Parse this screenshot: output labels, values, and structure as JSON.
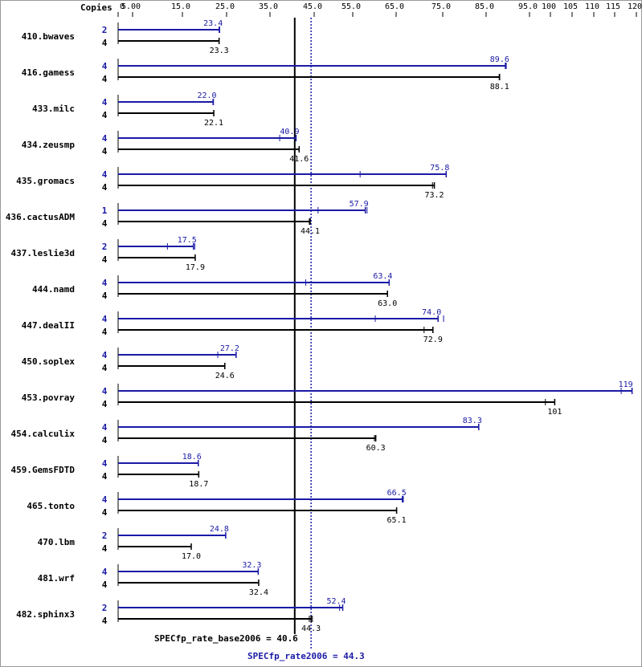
{
  "chart_data": {
    "type": "bar",
    "orientation": "horizontal",
    "axis_header": "Copies",
    "x_ticks": [
      {
        "label": "0",
        "value": 0
      },
      {
        "label": "5.00",
        "value": 5
      },
      {
        "label": "15.0",
        "value": 15
      },
      {
        "label": "25.0",
        "value": 25
      },
      {
        "label": "35.0",
        "value": 35
      },
      {
        "label": "45.0",
        "value": 45
      },
      {
        "label": "55.0",
        "value": 55
      },
      {
        "label": "65.0",
        "value": 65
      },
      {
        "label": "75.0",
        "value": 75
      },
      {
        "label": "85.0",
        "value": 85
      },
      {
        "label": "95.0",
        "value": 95
      },
      {
        "label": "100",
        "value": 100
      },
      {
        "label": "105",
        "value": 105
      },
      {
        "label": "110",
        "value": 110
      },
      {
        "label": "115",
        "value": 115
      },
      {
        "label": "120",
        "value": 120
      }
    ],
    "x_range": [
      0,
      120
    ],
    "benchmarks": [
      {
        "name": "410.bwaves",
        "peak": {
          "copies": "2",
          "value": 23.4,
          "label": "23.4",
          "runs": [
            23.3,
            23.4
          ]
        },
        "base": {
          "copies": "4",
          "value": 23.3,
          "label": "23.3",
          "runs": [
            23.3,
            23.3
          ]
        }
      },
      {
        "name": "416.gamess",
        "peak": {
          "copies": "4",
          "value": 89.6,
          "label": "89.6",
          "runs": [
            89.4,
            89.6
          ]
        },
        "base": {
          "copies": "4",
          "value": 88.1,
          "label": "88.1",
          "runs": [
            88.0,
            88.1
          ]
        }
      },
      {
        "name": "433.milc",
        "peak": {
          "copies": "4",
          "value": 22.0,
          "label": "22.0",
          "runs": [
            21.9,
            22.0
          ]
        },
        "base": {
          "copies": "4",
          "value": 22.1,
          "label": "22.1",
          "runs": [
            22.1,
            22.1
          ]
        }
      },
      {
        "name": "434.zeusmp",
        "peak": {
          "copies": "4",
          "value": 40.9,
          "label": "40.9",
          "runs": [
            37.2,
            40.9
          ]
        },
        "base": {
          "copies": "4",
          "value": 41.6,
          "label": "41.6",
          "runs": [
            41.6,
            41.6
          ]
        }
      },
      {
        "name": "435.gromacs",
        "peak": {
          "copies": "4",
          "value": 75.8,
          "label": "75.8",
          "runs": [
            56.7,
            75.8
          ]
        },
        "base": {
          "copies": "4",
          "value": 73.2,
          "label": "73.2",
          "runs": [
            72.8,
            73.2
          ]
        }
      },
      {
        "name": "436.cactusADM",
        "peak": {
          "copies": "1",
          "value": 57.9,
          "label": "57.9",
          "runs": [
            46.0,
            57.9,
            58.3
          ]
        },
        "base": {
          "copies": "4",
          "value": 44.1,
          "label": "44.1",
          "runs": [
            43.9,
            44.1
          ]
        }
      },
      {
        "name": "437.leslie3d",
        "peak": {
          "copies": "2",
          "value": 17.5,
          "label": "17.5",
          "runs": [
            12.0,
            17.5,
            17.8
          ]
        },
        "base": {
          "copies": "4",
          "value": 17.9,
          "label": "17.9",
          "runs": [
            17.9,
            17.9
          ]
        }
      },
      {
        "name": "444.namd",
        "peak": {
          "copies": "4",
          "value": 63.4,
          "label": "63.4",
          "runs": [
            43.1,
            63.4
          ]
        },
        "base": {
          "copies": "4",
          "value": 63.0,
          "label": "63.0",
          "runs": [
            63.0,
            63.0
          ]
        }
      },
      {
        "name": "447.dealII",
        "peak": {
          "copies": "4",
          "value": 74.0,
          "label": "74.0",
          "runs": [
            60.2,
            74.0,
            75.2
          ]
        },
        "base": {
          "copies": "4",
          "value": 72.9,
          "label": "72.9",
          "runs": [
            71.0,
            72.9
          ]
        }
      },
      {
        "name": "450.soplex",
        "peak": {
          "copies": "4",
          "value": 27.2,
          "label": "27.2",
          "runs": [
            23.0,
            27.2
          ]
        },
        "base": {
          "copies": "4",
          "value": 24.6,
          "label": "24.6",
          "runs": [
            24.6,
            24.6
          ]
        }
      },
      {
        "name": "453.povray",
        "peak": {
          "copies": "4",
          "value": 119,
          "label": "119",
          "runs": [
            116.5,
            119
          ]
        },
        "base": {
          "copies": "4",
          "value": 101,
          "label": "101",
          "runs": [
            98.8,
            101
          ]
        }
      },
      {
        "name": "454.calculix",
        "peak": {
          "copies": "4",
          "value": 83.3,
          "label": "83.3",
          "runs": [
            83.3,
            83.3
          ]
        },
        "base": {
          "copies": "4",
          "value": 60.3,
          "label": "60.3",
          "runs": [
            60.0,
            60.3
          ]
        }
      },
      {
        "name": "459.GemsFDTD",
        "peak": {
          "copies": "4",
          "value": 18.6,
          "label": "18.6",
          "runs": [
            18.6,
            18.6
          ]
        },
        "base": {
          "copies": "4",
          "value": 18.7,
          "label": "18.7",
          "runs": [
            18.7,
            18.7
          ]
        }
      },
      {
        "name": "465.tonto",
        "peak": {
          "copies": "4",
          "value": 66.5,
          "label": "66.5",
          "runs": [
            66.3,
            66.5
          ]
        },
        "base": {
          "copies": "4",
          "value": 65.1,
          "label": "65.1",
          "runs": [
            65.1,
            65.1
          ]
        }
      },
      {
        "name": "470.lbm",
        "peak": {
          "copies": "2",
          "value": 24.8,
          "label": "24.8",
          "runs": [
            24.8,
            24.8
          ]
        },
        "base": {
          "copies": "4",
          "value": 17.0,
          "label": "17.0",
          "runs": [
            17.0,
            17.0
          ]
        }
      },
      {
        "name": "481.wrf",
        "peak": {
          "copies": "4",
          "value": 32.3,
          "label": "32.3",
          "runs": [
            32.3,
            32.3
          ]
        },
        "base": {
          "copies": "4",
          "value": 32.4,
          "label": "32.4",
          "runs": [
            32.4,
            32.4
          ]
        }
      },
      {
        "name": "482.sphinx3",
        "peak": {
          "copies": "2",
          "value": 52.4,
          "label": "52.4",
          "runs": [
            51.6,
            52.4
          ]
        },
        "base": {
          "copies": "4",
          "value": 44.3,
          "label": "44.3",
          "runs": [
            43.9,
            44.3,
            44.6
          ]
        }
      }
    ],
    "summary": {
      "base": {
        "label": "SPECfp_rate_base2006 = 40.6",
        "value": 40.6
      },
      "peak": {
        "label": "SPECfp_rate2006 = 44.3",
        "value": 44.3
      }
    },
    "colors": {
      "peak": "#1a1aa6",
      "base": "#000000",
      "text": "#000000"
    }
  }
}
